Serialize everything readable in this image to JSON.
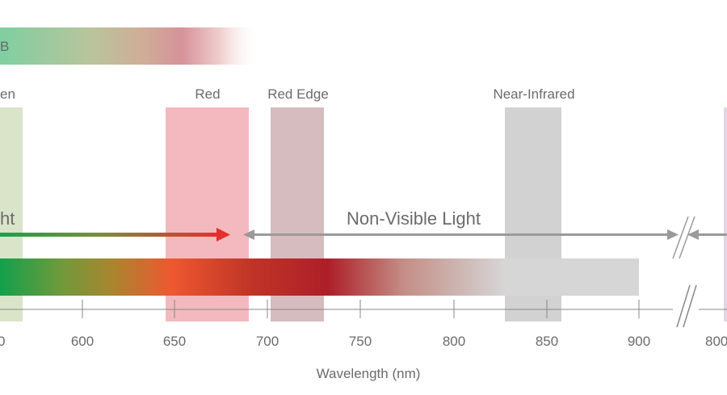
{
  "rgb_bar": {
    "label": "B"
  },
  "bands": [
    {
      "id": "green",
      "label": "en"
    },
    {
      "id": "red",
      "label": "Red"
    },
    {
      "id": "red-edge",
      "label": "Red Edge"
    },
    {
      "id": "near-infrared",
      "label": "Near-Infrared"
    }
  ],
  "visible_light": {
    "label": "ht"
  },
  "non_visible_light": {
    "label": "Non-Visible Light"
  },
  "axis": {
    "title": "Wavelength (nm)",
    "ticks": [
      "0",
      "600",
      "650",
      "700",
      "750",
      "800",
      "850",
      "900",
      "800"
    ]
  },
  "colors": {
    "green_band": "#d9e4c9",
    "red_band": "#f4b9be",
    "red_edge_band": "#d6bbbf",
    "nir_band": "#d2d2d2",
    "arrow_grey": "#9a9a9a",
    "arrow_red": "#e0302e",
    "axis": "#888888",
    "text": "#6b6b6b"
  }
}
